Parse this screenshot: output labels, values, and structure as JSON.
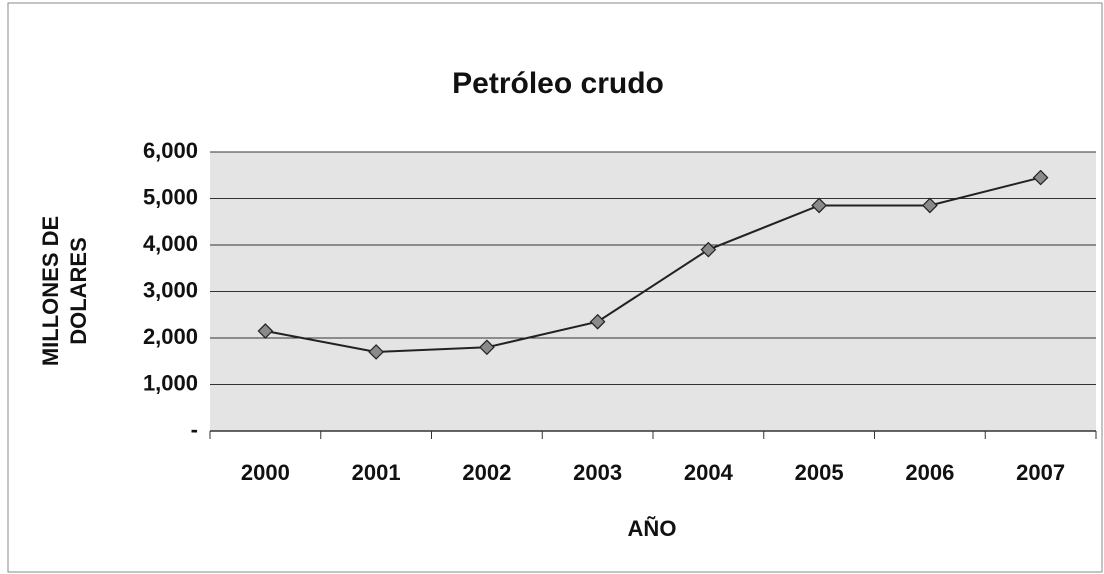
{
  "chart_data": {
    "type": "line",
    "title": "Petróleo crudo",
    "y_label": [
      "MILLONES DE",
      "DOLARES"
    ],
    "x_label": "AÑO",
    "categories": [
      "2000",
      "2001",
      "2002",
      "2003",
      "2004",
      "2005",
      "2006",
      "2007"
    ],
    "series": [
      {
        "name": "Petróleo crudo",
        "color": "#222222",
        "values": [
          2150,
          1700,
          1800,
          2350,
          3900,
          4850,
          4850,
          5450
        ]
      }
    ],
    "ylim": [
      0,
      6000
    ],
    "yticks": [
      {
        "value": 0,
        "label": "-"
      },
      {
        "value": 1000,
        "label": "1,000"
      },
      {
        "value": 2000,
        "label": "2,000"
      },
      {
        "value": 3000,
        "label": "3,000"
      },
      {
        "value": 4000,
        "label": "4,000"
      },
      {
        "value": 5000,
        "label": "5,000"
      },
      {
        "value": 6000,
        "label": "6,000"
      }
    ],
    "grid": true
  }
}
